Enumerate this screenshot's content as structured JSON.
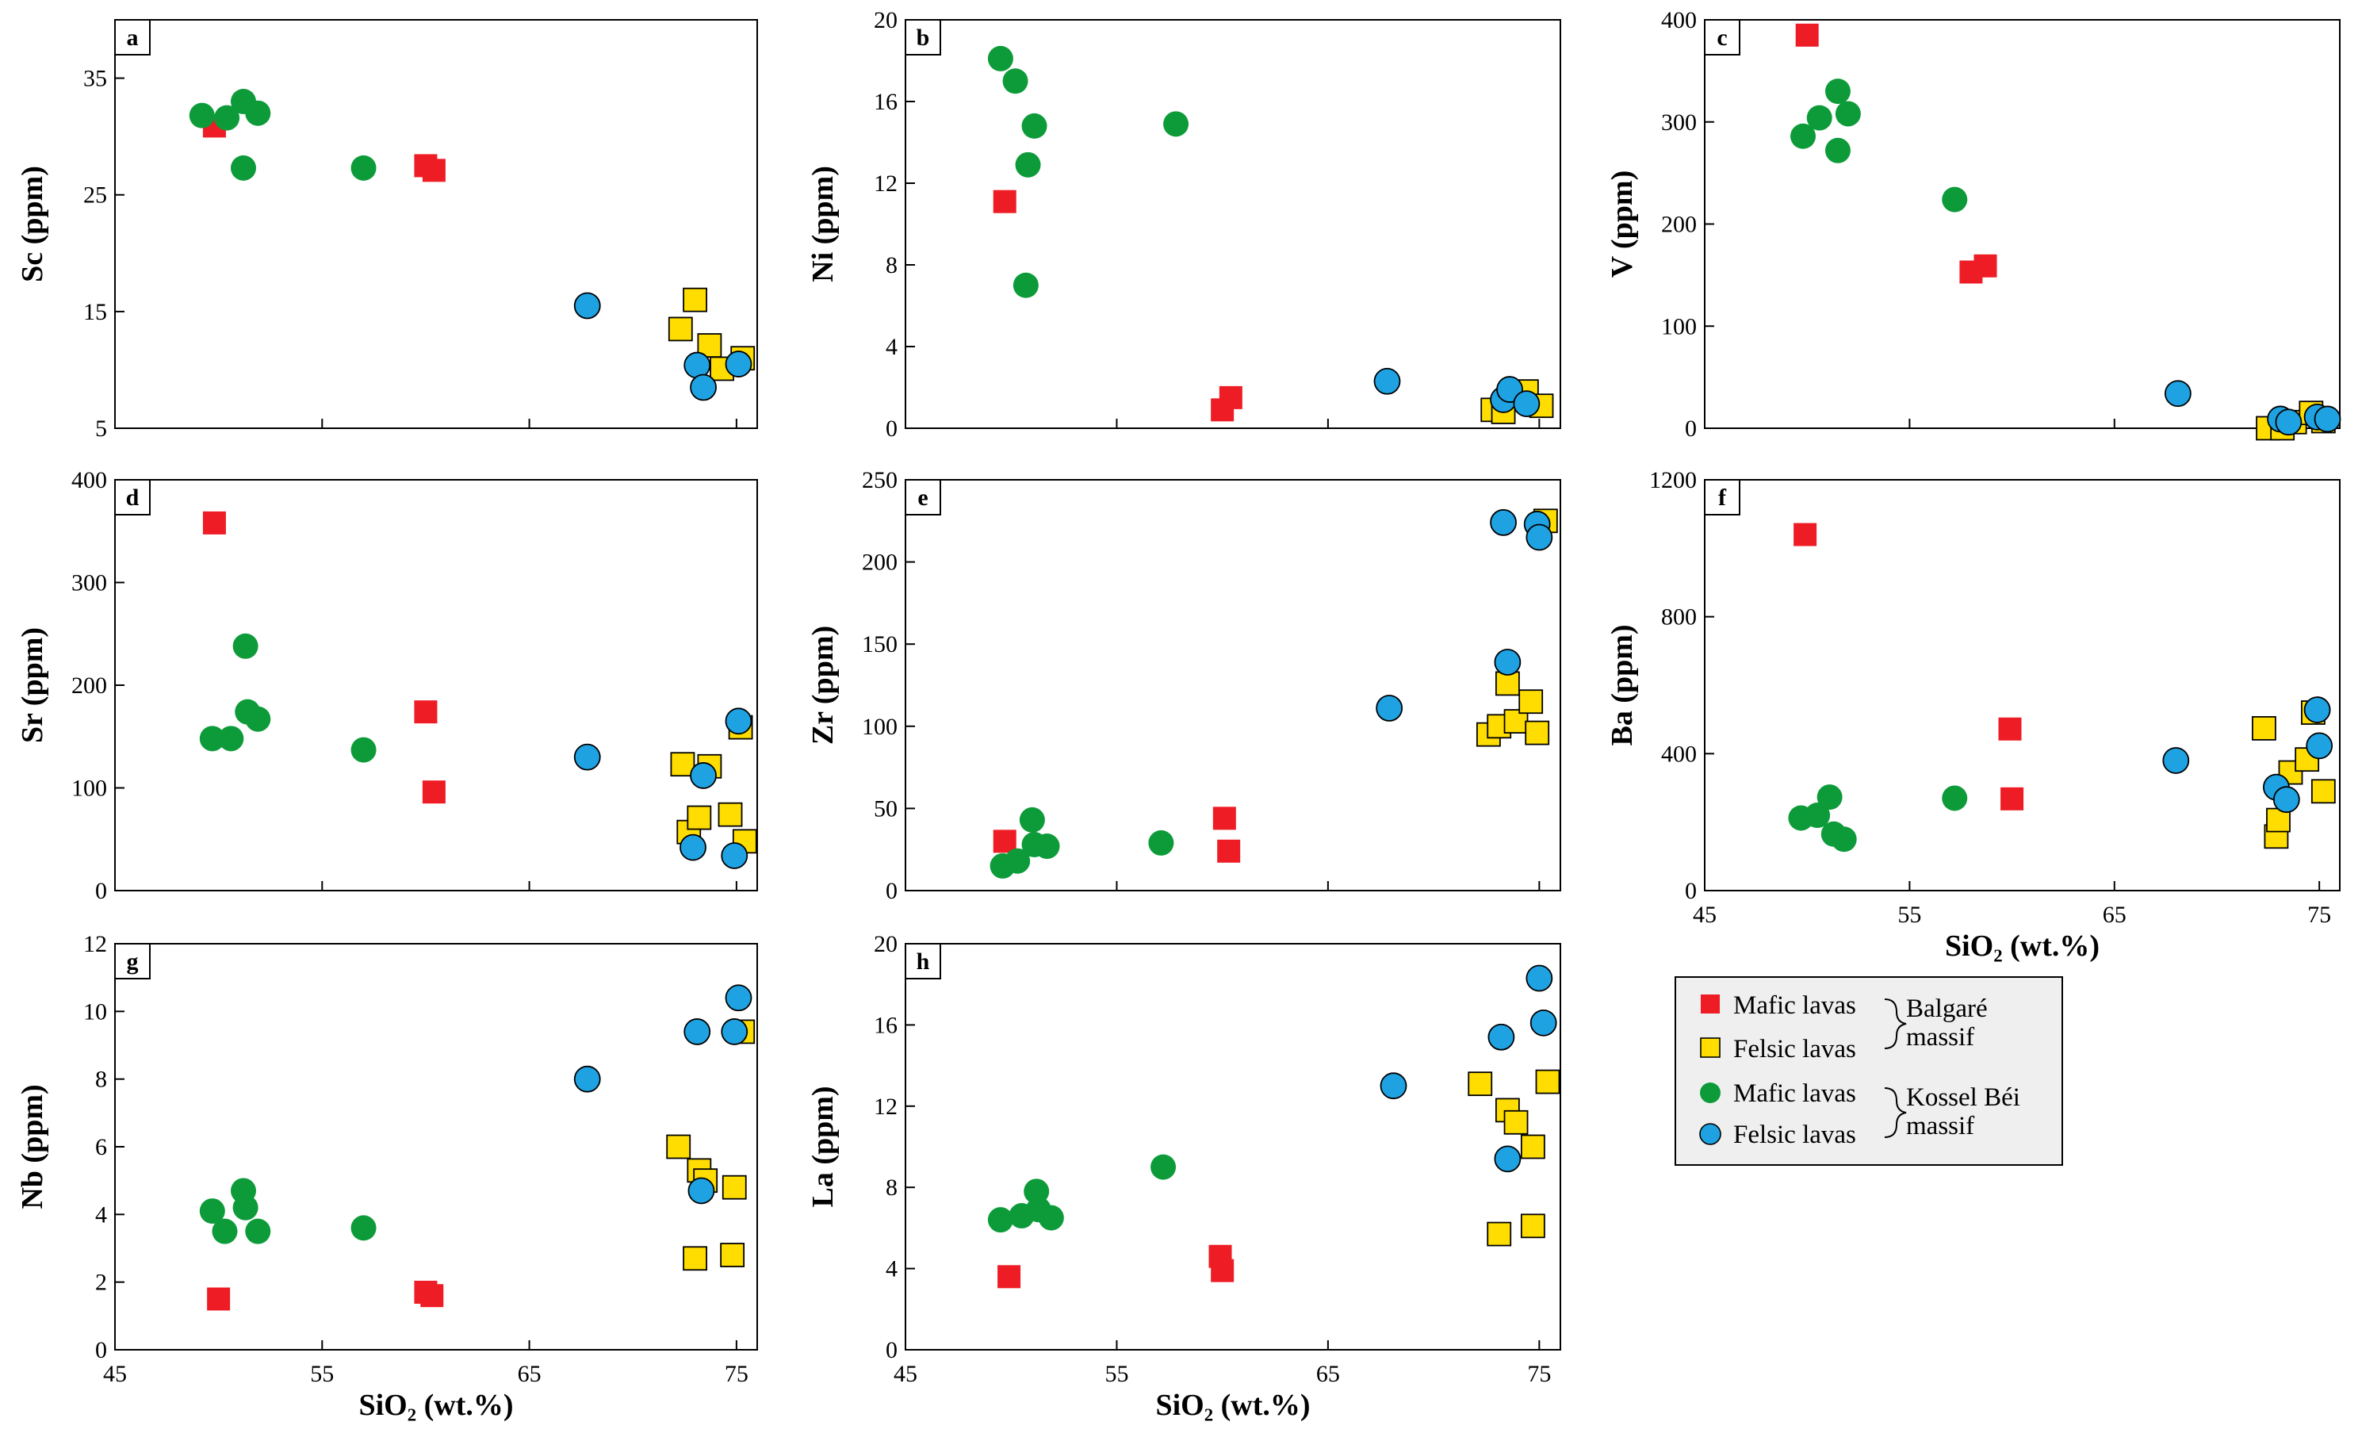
{
  "colors": {
    "balgare_mafic": "#ee1c25",
    "balgare_felsic": "#ffdd00",
    "kossel_mafic": "#0d9b3a",
    "kossel_felsic": "#1fa2e2",
    "legend_bg": "#efefef"
  },
  "series_defs": [
    {
      "key": "bm",
      "color": "#ee1c25",
      "shape": "square"
    },
    {
      "key": "bf",
      "color": "#ffdd00",
      "shape": "square"
    },
    {
      "key": "km",
      "color": "#0d9b3a",
      "shape": "circle"
    },
    {
      "key": "kf",
      "color": "#1fa2e2",
      "shape": "circle"
    }
  ],
  "legend": {
    "mafic_lavas": "Mafic lavas",
    "felsic_lavas": "Felsic lavas",
    "balgare": "Balgaré",
    "kossel_bei": "Kossel Béi",
    "massif": "massif"
  },
  "chart_data": [
    {
      "id": "a",
      "type": "scatter",
      "ylabel": "Sc (ppm)",
      "xlabel": "",
      "show_xticks": false,
      "xlim": [
        45,
        76
      ],
      "ylim": [
        5,
        40
      ],
      "yticks": [
        5,
        15,
        25,
        35
      ],
      "xticks": [
        45,
        55,
        65,
        75
      ],
      "series": {
        "bm": [
          [
            49.8,
            30.9
          ],
          [
            60.0,
            27.5
          ],
          [
            60.4,
            27.1
          ]
        ],
        "bf": [
          [
            72.3,
            13.5
          ],
          [
            73.0,
            16.0
          ],
          [
            73.7,
            12.1
          ],
          [
            74.3,
            10.1
          ],
          [
            75.3,
            11.0
          ]
        ],
        "km": [
          [
            49.2,
            31.8
          ],
          [
            50.4,
            31.6
          ],
          [
            51.2,
            33.0
          ],
          [
            51.9,
            32.0
          ],
          [
            51.2,
            27.3
          ],
          [
            57.0,
            27.3
          ]
        ],
        "kf": [
          [
            67.8,
            15.5
          ],
          [
            73.1,
            10.4
          ],
          [
            73.4,
            8.5
          ],
          [
            75.1,
            10.5
          ]
        ]
      }
    },
    {
      "id": "b",
      "type": "scatter",
      "ylabel": "Ni (ppm)",
      "xlabel": "",
      "show_xticks": false,
      "xlim": [
        45,
        76
      ],
      "ylim": [
        0,
        20
      ],
      "yticks": [
        0,
        4,
        8,
        12,
        16,
        20
      ],
      "xticks": [
        45,
        55,
        65,
        75
      ],
      "series": {
        "bm": [
          [
            49.7,
            11.1
          ],
          [
            60.0,
            0.9
          ],
          [
            60.4,
            1.5
          ]
        ],
        "bf": [
          [
            72.8,
            0.9
          ],
          [
            73.3,
            0.8
          ],
          [
            74.4,
            1.8
          ],
          [
            75.1,
            1.1
          ]
        ],
        "km": [
          [
            49.5,
            18.1
          ],
          [
            50.2,
            17.0
          ],
          [
            51.1,
            14.8
          ],
          [
            50.8,
            12.9
          ],
          [
            50.7,
            7.0
          ],
          [
            57.8,
            14.9
          ]
        ],
        "kf": [
          [
            67.8,
            2.3
          ],
          [
            73.3,
            1.4
          ],
          [
            73.6,
            1.9
          ],
          [
            74.4,
            1.2
          ]
        ]
      }
    },
    {
      "id": "c",
      "type": "scatter",
      "ylabel": "V (ppm)",
      "xlabel": "",
      "show_xticks": false,
      "xlim": [
        45,
        76
      ],
      "ylim": [
        0,
        400
      ],
      "yticks": [
        0,
        100,
        200,
        300,
        400
      ],
      "xticks": [
        45,
        55,
        65,
        75
      ],
      "series": {
        "bm": [
          [
            50.0,
            385
          ],
          [
            58.0,
            153
          ],
          [
            58.7,
            159
          ]
        ],
        "bf": [
          [
            72.5,
            0
          ],
          [
            73.2,
            0
          ],
          [
            73.8,
            6
          ],
          [
            74.6,
            15
          ],
          [
            75.2,
            7
          ]
        ],
        "km": [
          [
            49.8,
            286
          ],
          [
            50.6,
            304
          ],
          [
            51.5,
            330
          ],
          [
            52.0,
            308
          ],
          [
            51.5,
            272
          ],
          [
            57.2,
            224
          ]
        ],
        "kf": [
          [
            68.1,
            34
          ],
          [
            73.1,
            9
          ],
          [
            73.5,
            6
          ],
          [
            74.9,
            11
          ],
          [
            75.4,
            9
          ]
        ]
      }
    },
    {
      "id": "d",
      "type": "scatter",
      "ylabel": "Sr (ppm)",
      "xlabel": "",
      "show_xticks": false,
      "xlim": [
        45,
        76
      ],
      "ylim": [
        0,
        400
      ],
      "yticks": [
        0,
        100,
        200,
        300,
        400
      ],
      "xticks": [
        45,
        55,
        65,
        75
      ],
      "series": {
        "bm": [
          [
            49.8,
            358
          ],
          [
            60.0,
            174
          ],
          [
            60.4,
            96
          ]
        ],
        "bf": [
          [
            72.4,
            123
          ],
          [
            72.7,
            57
          ],
          [
            73.2,
            71
          ],
          [
            73.7,
            121
          ],
          [
            74.7,
            74
          ],
          [
            75.2,
            159
          ],
          [
            75.4,
            48
          ]
        ],
        "km": [
          [
            49.7,
            148
          ],
          [
            50.6,
            148
          ],
          [
            51.3,
            238
          ],
          [
            51.4,
            174
          ],
          [
            51.9,
            167
          ],
          [
            57.0,
            137
          ]
        ],
        "kf": [
          [
            67.8,
            130
          ],
          [
            72.9,
            42
          ],
          [
            73.4,
            112
          ],
          [
            74.9,
            34
          ],
          [
            75.1,
            165
          ]
        ]
      }
    },
    {
      "id": "e",
      "type": "scatter",
      "ylabel": "Zr (ppm)",
      "xlabel": "",
      "show_xticks": false,
      "xlim": [
        45,
        76
      ],
      "ylim": [
        0,
        250
      ],
      "yticks": [
        0,
        50,
        100,
        150,
        200,
        250
      ],
      "xticks": [
        45,
        55,
        65,
        75
      ],
      "series": {
        "bm": [
          [
            49.7,
            30
          ],
          [
            60.1,
            44
          ],
          [
            60.3,
            24
          ]
        ],
        "bf": [
          [
            72.6,
            95
          ],
          [
            73.1,
            100
          ],
          [
            73.5,
            126
          ],
          [
            73.9,
            103
          ],
          [
            74.6,
            115
          ],
          [
            74.9,
            96
          ],
          [
            75.3,
            225
          ]
        ],
        "km": [
          [
            49.6,
            15
          ],
          [
            50.3,
            18
          ],
          [
            51.0,
            43
          ],
          [
            51.1,
            28
          ],
          [
            51.7,
            27
          ],
          [
            57.1,
            29
          ]
        ],
        "kf": [
          [
            67.9,
            111
          ],
          [
            73.3,
            224
          ],
          [
            73.5,
            139
          ],
          [
            74.9,
            223
          ],
          [
            75.0,
            215
          ]
        ]
      }
    },
    {
      "id": "f",
      "type": "scatter",
      "ylabel": "Ba (ppm)",
      "xlabel": "SiO₂ (wt.%)",
      "show_xticks": true,
      "xlim": [
        45,
        76
      ],
      "ylim": [
        0,
        1200
      ],
      "yticks": [
        0,
        400,
        800,
        1200
      ],
      "xticks": [
        45,
        55,
        65,
        75
      ],
      "series": {
        "bm": [
          [
            49.9,
            1040
          ],
          [
            59.9,
            472
          ],
          [
            60.0,
            268
          ]
        ],
        "bf": [
          [
            72.3,
            474
          ],
          [
            72.9,
            158
          ],
          [
            73.0,
            206
          ],
          [
            73.6,
            345
          ],
          [
            74.4,
            383
          ],
          [
            74.7,
            520
          ],
          [
            75.2,
            290
          ]
        ],
        "km": [
          [
            49.7,
            212
          ],
          [
            50.5,
            220
          ],
          [
            51.1,
            273
          ],
          [
            51.3,
            165
          ],
          [
            51.8,
            150
          ],
          [
            57.2,
            270
          ]
        ],
        "kf": [
          [
            68.0,
            380
          ],
          [
            72.9,
            302
          ],
          [
            73.4,
            266
          ],
          [
            74.9,
            528
          ],
          [
            75.0,
            423
          ]
        ]
      }
    },
    {
      "id": "g",
      "type": "scatter",
      "ylabel": "Nb (ppm)",
      "xlabel": "SiO₂ (wt.%)",
      "show_xticks": true,
      "xlim": [
        45,
        76
      ],
      "ylim": [
        0,
        12
      ],
      "yticks": [
        0,
        2,
        4,
        6,
        8,
        10,
        12
      ],
      "xticks": [
        45,
        55,
        65,
        75
      ],
      "series": {
        "bm": [
          [
            50.0,
            1.5
          ],
          [
            60.0,
            1.7
          ],
          [
            60.3,
            1.6
          ]
        ],
        "bf": [
          [
            72.2,
            6.0
          ],
          [
            73.0,
            2.7
          ],
          [
            73.2,
            5.3
          ],
          [
            73.5,
            5.0
          ],
          [
            74.8,
            2.8
          ],
          [
            74.9,
            4.8
          ],
          [
            75.3,
            9.4
          ]
        ],
        "km": [
          [
            49.7,
            4.1
          ],
          [
            50.3,
            3.5
          ],
          [
            51.2,
            4.7
          ],
          [
            51.3,
            4.2
          ],
          [
            51.9,
            3.5
          ],
          [
            57.0,
            3.6
          ]
        ],
        "kf": [
          [
            67.8,
            8.0
          ],
          [
            73.1,
            9.4
          ],
          [
            73.3,
            4.7
          ],
          [
            74.9,
            9.4
          ],
          [
            75.1,
            10.4
          ]
        ]
      }
    },
    {
      "id": "h",
      "type": "scatter",
      "ylabel": "La (ppm)",
      "xlabel": "SiO₂ (wt.%)",
      "show_xticks": true,
      "xlim": [
        45,
        76
      ],
      "ylim": [
        0,
        20
      ],
      "yticks": [
        0,
        4,
        8,
        12,
        16,
        20
      ],
      "xticks": [
        45,
        55,
        65,
        75
      ],
      "series": {
        "bm": [
          [
            49.9,
            3.6
          ],
          [
            59.9,
            4.6
          ],
          [
            60.0,
            3.9
          ]
        ],
        "bf": [
          [
            72.2,
            13.1
          ],
          [
            73.1,
            5.7
          ],
          [
            73.5,
            11.8
          ],
          [
            73.9,
            11.2
          ],
          [
            74.7,
            10.0
          ],
          [
            74.7,
            6.1
          ],
          [
            75.4,
            13.2
          ]
        ],
        "km": [
          [
            49.5,
            6.4
          ],
          [
            50.5,
            6.6
          ],
          [
            51.2,
            7.8
          ],
          [
            51.3,
            6.9
          ],
          [
            51.9,
            6.5
          ],
          [
            57.2,
            9.0
          ]
        ],
        "kf": [
          [
            68.1,
            13.0
          ],
          [
            73.2,
            15.4
          ],
          [
            73.5,
            9.4
          ],
          [
            75.0,
            18.3
          ],
          [
            75.2,
            16.1
          ]
        ]
      }
    }
  ]
}
